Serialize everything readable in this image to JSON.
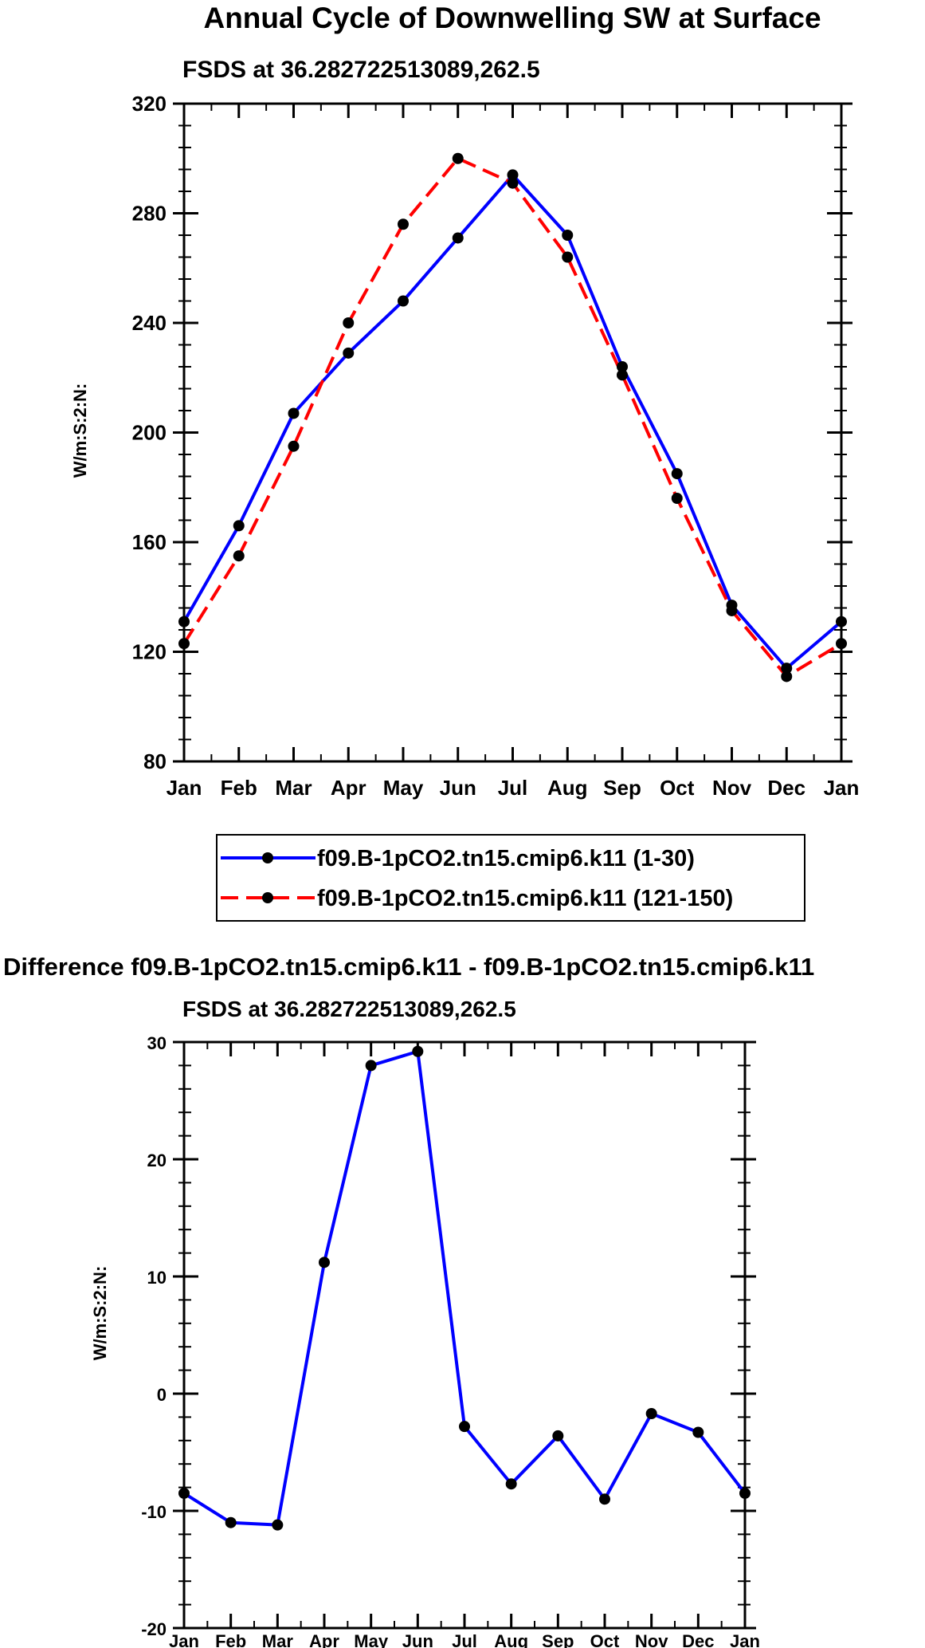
{
  "chart_data": [
    {
      "type": "line",
      "title": "Annual Cycle of Downwelling SW at Surface",
      "subtitle": "FSDS at 36.282722513089,262.5",
      "xlabel": "",
      "ylabel": "W/m:S:2:N:",
      "categories": [
        "Jan",
        "Feb",
        "Mar",
        "Apr",
        "May",
        "Jun",
        "Jul",
        "Aug",
        "Sep",
        "Oct",
        "Nov",
        "Dec",
        "Jan"
      ],
      "ylim": [
        80,
        320
      ],
      "yticks": [
        80,
        120,
        160,
        200,
        240,
        280,
        320
      ],
      "series": [
        {
          "name": "f09.B-1pCO2.tn15.cmip6.k11 (1-30)",
          "color": "#0000ff",
          "dash": "solid",
          "values": [
            131,
            166,
            207,
            229,
            248,
            271,
            294,
            272,
            224,
            185,
            137,
            114,
            131
          ]
        },
        {
          "name": "f09.B-1pCO2.tn15.cmip6.k11 (121-150)",
          "color": "#ff0000",
          "dash": "dashed",
          "values": [
            123,
            155,
            195,
            240,
            276,
            300,
            291,
            264,
            221,
            176,
            135,
            111,
            123
          ]
        }
      ],
      "legend": "below"
    },
    {
      "type": "line",
      "title": "Difference f09.B-1pCO2.tn15.cmip6.k11 - f09.B-1pCO2.tn15.cmip6.k11",
      "subtitle": "FSDS at 36.282722513089,262.5",
      "xlabel": "",
      "ylabel": "W/m:S:2:N:",
      "categories": [
        "Jan",
        "Feb",
        "Mar",
        "Apr",
        "May",
        "Jun",
        "Jul",
        "Aug",
        "Sep",
        "Oct",
        "Nov",
        "Dec",
        "Jan"
      ],
      "ylim": [
        -20,
        30
      ],
      "yticks": [
        -20,
        -10,
        0,
        10,
        20,
        30
      ],
      "series": [
        {
          "name": "Difference",
          "color": "#0000ff",
          "dash": "solid",
          "values": [
            -8.5,
            -11.0,
            -11.2,
            11.2,
            28.0,
            29.2,
            -2.8,
            -7.7,
            -3.6,
            -9.0,
            -1.7,
            -3.3,
            -8.5
          ]
        }
      ]
    }
  ]
}
